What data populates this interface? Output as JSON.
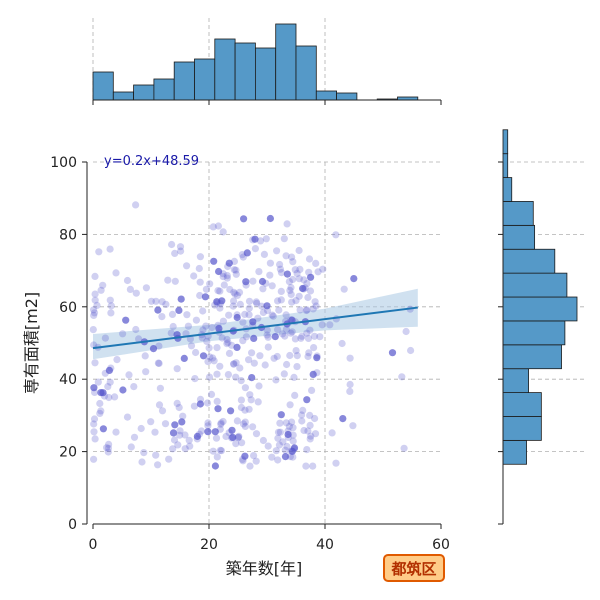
{
  "chart_data": {
    "type": "scatter",
    "xlabel": "築年数[年]",
    "ylabel": "専有面積[m2]",
    "xlim": [
      0,
      60
    ],
    "ylim": [
      0,
      100
    ],
    "x_ticks": [
      "0",
      "20",
      "40",
      "60"
    ],
    "y_ticks": [
      "0",
      "20",
      "40",
      "60",
      "80",
      "100"
    ],
    "grid": true,
    "regression": {
      "label": "y=0.2x+48.59",
      "slope": 0.2,
      "intercept": 48.59,
      "x_range": [
        0,
        56
      ],
      "ci_band": [
        [
          0,
          45.5,
          52.5
        ],
        [
          20,
          50.5,
          55.0
        ],
        [
          40,
          53.5,
          59.5
        ],
        [
          56,
          54.5,
          65.0
        ]
      ]
    },
    "marginal_x": {
      "bin_width": 3.5,
      "bins_start": 0,
      "counts": [
        28,
        8,
        15,
        21,
        38,
        41,
        61,
        57,
        52,
        76,
        54,
        9,
        7,
        0,
        1,
        3
      ]
    },
    "marginal_y": {
      "bin_width": 6.6,
      "bins_start": 16.5,
      "counts": [
        35,
        57,
        57,
        38,
        87,
        92,
        110,
        95,
        77,
        47,
        45,
        13,
        7,
        7
      ]
    },
    "colors": {
      "point": "#5555cc",
      "regression_line": "#1f77b4",
      "ci_band": "#aac8e4",
      "histogram": "#5599c8",
      "badge_fill": "#ffcc88",
      "badge_border": "#e05a00"
    }
  },
  "badge": {
    "label": "都筑区"
  }
}
